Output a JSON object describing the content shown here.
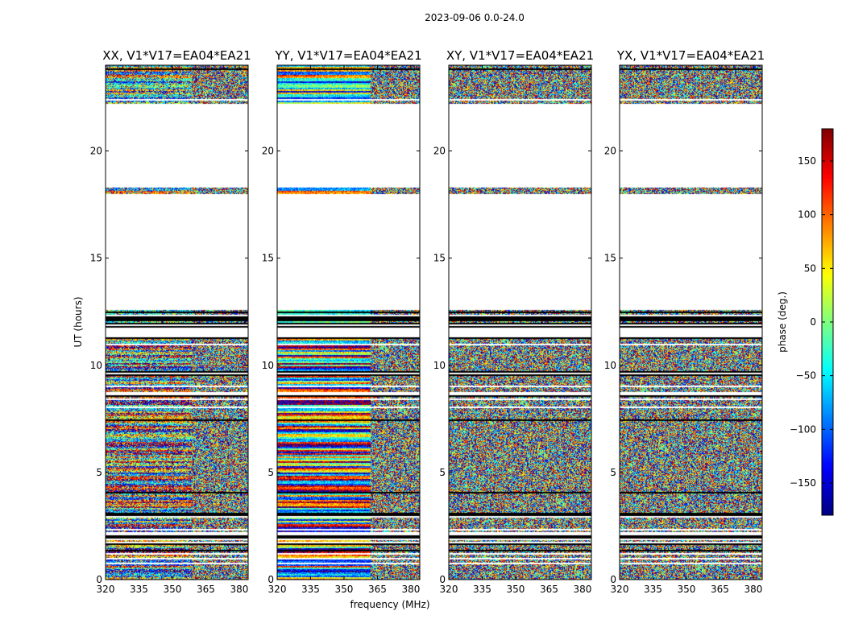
{
  "chart_data": {
    "type": "heatmap",
    "suptitle": "2023-09-06 0.0-24.0",
    "xlabel": "frequency (MHz)",
    "ylabel": "UT (hours)",
    "xlim": [
      320,
      384
    ],
    "ylim": [
      0,
      24
    ],
    "xticks": [
      320,
      335,
      350,
      365,
      380
    ],
    "yticks": [
      0,
      5,
      10,
      15,
      20
    ],
    "panels": [
      {
        "title": "XX, V1*V17=EA04*EA21",
        "mode": "mixed"
      },
      {
        "title": "YY, V1*V17=EA04*EA21",
        "mode": "coherent"
      },
      {
        "title": "XY, V1*V17=EA04*EA21",
        "mode": "noise"
      },
      {
        "title": "YX, V1*V17=EA04*EA21",
        "mode": "noise"
      }
    ],
    "data_ranges_hours": [
      [
        0.0,
        12.6
      ],
      [
        18.0,
        18.3
      ],
      [
        22.2,
        24.0
      ]
    ],
    "colorbar": {
      "label": "phase (deg.)",
      "min": -180,
      "max": 180,
      "ticks": [
        -150,
        -100,
        -50,
        0,
        50,
        100,
        150
      ],
      "colormap": "jet"
    }
  }
}
